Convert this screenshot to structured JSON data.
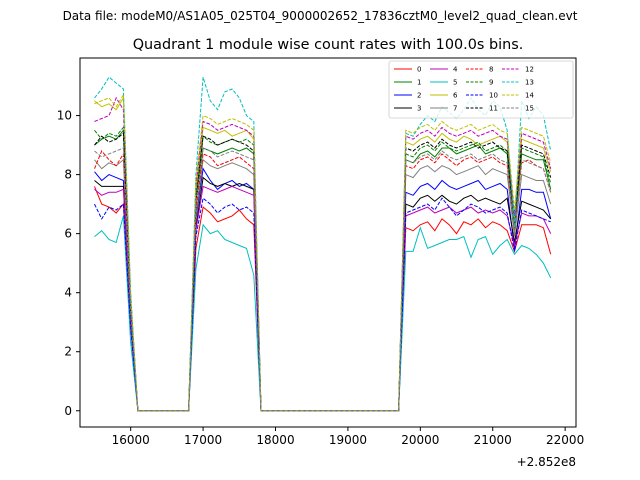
{
  "figure": {
    "suptitle": "Data file: modeM0/AS1A05_025T04_9000002652_17836cztM0_level2_quad_clean.evt",
    "offset_text": "+2.852e8"
  },
  "chart_data": {
    "type": "line",
    "title": "Quadrant 1 module wise count rates with 100.0s bins.",
    "xlabel": "",
    "ylabel": "",
    "x_offset": 285200000,
    "xlim": [
      15300,
      22150
    ],
    "ylim": [
      -0.55,
      11.95
    ],
    "x_ticks": [
      16000,
      17000,
      18000,
      19000,
      20000,
      21000,
      22000
    ],
    "x_tick_labels": [
      "16000",
      "17000",
      "18000",
      "19000",
      "20000",
      "21000",
      "22000"
    ],
    "y_ticks": [
      0,
      2,
      4,
      6,
      8,
      10
    ],
    "y_tick_labels": [
      "0",
      "2",
      "4",
      "6",
      "8",
      "10"
    ],
    "grid": false,
    "legend_position": "top-right",
    "legend_columns": 4,
    "x": [
      15500,
      15600,
      15700,
      15800,
      15900,
      16000,
      16100,
      16800,
      16900,
      17000,
      17100,
      17200,
      17300,
      17400,
      17500,
      17600,
      17700,
      17800,
      19700,
      19800,
      19900,
      20000,
      20100,
      20200,
      20300,
      20400,
      20500,
      20600,
      20700,
      20800,
      20900,
      21000,
      21100,
      21200,
      21300,
      21400,
      21500,
      21600,
      21700,
      21800
    ],
    "series": [
      {
        "name": "0",
        "color": "#ff0000",
        "dash": "solid",
        "values": [
          7.6,
          7.0,
          6.9,
          6.7,
          7.0,
          2.8,
          0,
          0,
          5.5,
          6.9,
          6.7,
          6.4,
          6.5,
          6.6,
          6.8,
          6.5,
          6.3,
          0,
          0,
          6.2,
          6.1,
          6.3,
          6.4,
          6.1,
          6.5,
          6.3,
          6.0,
          6.4,
          6.3,
          6.5,
          6.2,
          6.4,
          6.3,
          6.1,
          5.4,
          6.3,
          6.3,
          6.3,
          6.2,
          5.3
        ]
      },
      {
        "name": "1",
        "color": "#008000",
        "dash": "solid",
        "values": [
          9.0,
          9.2,
          9.3,
          9.2,
          9.5,
          3.5,
          0,
          0,
          7.0,
          8.9,
          8.8,
          8.7,
          8.8,
          8.9,
          8.8,
          8.9,
          8.7,
          0,
          0,
          8.5,
          8.4,
          8.7,
          8.8,
          8.6,
          8.9,
          8.9,
          8.7,
          8.8,
          8.9,
          9.0,
          8.7,
          8.8,
          8.9,
          8.7,
          6.0,
          8.7,
          8.6,
          8.5,
          8.5,
          7.5
        ]
      },
      {
        "name": "2",
        "color": "#0000ff",
        "dash": "solid",
        "values": [
          8.1,
          7.8,
          8.0,
          7.9,
          7.8,
          3.1,
          0,
          0,
          6.5,
          8.2,
          7.8,
          7.5,
          7.7,
          7.8,
          7.6,
          7.7,
          7.5,
          0,
          0,
          7.4,
          7.3,
          7.6,
          7.7,
          7.5,
          7.8,
          7.6,
          7.5,
          7.6,
          7.7,
          7.8,
          7.5,
          7.6,
          7.7,
          7.5,
          5.5,
          7.5,
          7.5,
          7.4,
          7.4,
          6.5
        ]
      },
      {
        "name": "3",
        "color": "#000000",
        "dash": "solid",
        "values": [
          7.8,
          7.6,
          7.6,
          7.6,
          7.6,
          3.0,
          0,
          0,
          6.2,
          7.9,
          7.7,
          7.6,
          7.7,
          7.6,
          7.7,
          7.6,
          7.5,
          0,
          0,
          7.0,
          6.9,
          7.2,
          7.3,
          7.1,
          7.3,
          7.1,
          7.0,
          7.2,
          7.3,
          7.1,
          7.2,
          7.1,
          7.0,
          7.2,
          5.7,
          7.1,
          7.0,
          6.9,
          6.8,
          6.5
        ]
      },
      {
        "name": "4",
        "color": "#bf00bf",
        "dash": "solid",
        "values": [
          7.5,
          7.3,
          7.4,
          7.4,
          7.5,
          2.9,
          0,
          0,
          6.1,
          7.6,
          7.5,
          7.4,
          7.5,
          7.6,
          7.5,
          7.4,
          7.3,
          0,
          0,
          6.6,
          6.7,
          6.8,
          6.9,
          6.7,
          6.8,
          6.9,
          6.7,
          6.8,
          6.9,
          6.7,
          6.8,
          6.7,
          6.8,
          6.6,
          5.6,
          6.7,
          6.6,
          6.6,
          6.5,
          6.0
        ]
      },
      {
        "name": "5",
        "color": "#00bfbf",
        "dash": "solid",
        "values": [
          5.9,
          6.1,
          5.8,
          5.7,
          6.6,
          2.3,
          0,
          0,
          4.8,
          6.3,
          6.0,
          6.1,
          5.8,
          5.7,
          5.6,
          5.5,
          4.6,
          0,
          0,
          5.4,
          5.4,
          6.2,
          5.5,
          5.6,
          5.7,
          5.8,
          5.8,
          5.9,
          5.2,
          5.8,
          5.9,
          5.3,
          5.6,
          5.8,
          5.3,
          5.6,
          5.5,
          5.3,
          5.0,
          4.5
        ]
      },
      {
        "name": "6",
        "color": "#bfbf00",
        "dash": "solid",
        "values": [
          10.5,
          10.3,
          10.4,
          10.2,
          10.6,
          3.8,
          0,
          0,
          7.4,
          9.6,
          9.5,
          9.4,
          9.5,
          9.3,
          9.4,
          9.5,
          9.2,
          0,
          0,
          9.1,
          9.0,
          9.2,
          9.3,
          9.1,
          9.4,
          9.2,
          9.1,
          9.3,
          9.2,
          9.0,
          9.1,
          9.2,
          9.3,
          9.1,
          6.4,
          9.2,
          9.1,
          9.0,
          8.9,
          8.1
        ]
      },
      {
        "name": "7",
        "color": "#808080",
        "dash": "solid",
        "values": [
          8.5,
          8.2,
          8.4,
          8.3,
          8.5,
          3.2,
          0,
          0,
          6.6,
          8.5,
          8.3,
          8.2,
          8.3,
          8.4,
          8.3,
          8.2,
          8.0,
          0,
          0,
          8.0,
          7.9,
          8.2,
          8.3,
          8.1,
          8.3,
          8.2,
          8.0,
          8.1,
          8.2,
          8.3,
          8.0,
          8.2,
          8.1,
          8.0,
          5.9,
          8.0,
          7.9,
          7.8,
          7.8,
          7.0
        ]
      },
      {
        "name": "8",
        "color": "#ff0000",
        "dash": "dashed",
        "values": [
          8.2,
          8.8,
          8.5,
          8.3,
          8.7,
          3.3,
          0,
          0,
          6.8,
          8.7,
          8.6,
          8.3,
          8.4,
          8.5,
          8.6,
          8.4,
          8.2,
          0,
          0,
          8.3,
          8.2,
          8.5,
          8.6,
          8.4,
          8.7,
          8.5,
          8.3,
          8.5,
          8.6,
          8.4,
          8.5,
          8.6,
          8.4,
          8.3,
          6.1,
          8.4,
          8.5,
          8.3,
          8.2,
          7.4
        ]
      },
      {
        "name": "9",
        "color": "#008000",
        "dash": "dashed",
        "values": [
          9.5,
          9.2,
          9.4,
          9.3,
          9.6,
          3.6,
          0,
          0,
          7.2,
          9.3,
          9.1,
          9.0,
          9.1,
          9.2,
          9.1,
          9.2,
          9.0,
          0,
          0,
          8.7,
          8.6,
          8.9,
          9.0,
          8.8,
          9.1,
          8.9,
          8.8,
          8.9,
          9.0,
          9.1,
          8.8,
          8.9,
          9.0,
          8.8,
          6.2,
          8.9,
          8.8,
          8.7,
          8.6,
          7.7
        ]
      },
      {
        "name": "10",
        "color": "#0000ff",
        "dash": "dashed",
        "values": [
          7.0,
          6.5,
          6.9,
          6.8,
          7.0,
          2.8,
          0,
          0,
          5.9,
          7.2,
          7.0,
          6.7,
          6.9,
          7.0,
          6.8,
          6.9,
          6.7,
          0,
          0,
          6.7,
          6.8,
          6.9,
          7.0,
          6.8,
          7.2,
          6.9,
          6.6,
          6.8,
          7.0,
          6.9,
          6.7,
          6.8,
          6.9,
          6.7,
          5.4,
          6.8,
          6.7,
          6.6,
          6.5,
          6.4
        ]
      },
      {
        "name": "11",
        "color": "#000000",
        "dash": "dashed",
        "values": [
          9.0,
          9.3,
          9.1,
          9.2,
          9.4,
          3.5,
          0,
          0,
          7.1,
          9.3,
          9.2,
          9.0,
          9.1,
          9.2,
          9.1,
          9.0,
          8.8,
          0,
          0,
          8.9,
          8.8,
          9.0,
          9.1,
          8.9,
          9.2,
          9.0,
          8.9,
          9.0,
          9.1,
          8.9,
          9.0,
          9.1,
          8.9,
          8.8,
          6.3,
          9.0,
          8.9,
          8.8,
          8.7,
          7.9
        ]
      },
      {
        "name": "12",
        "color": "#bf00bf",
        "dash": "dashed",
        "values": [
          9.8,
          9.9,
          10.0,
          10.6,
          10.2,
          3.8,
          0,
          0,
          7.6,
          9.8,
          9.7,
          9.5,
          9.6,
          9.7,
          9.6,
          9.5,
          9.3,
          0,
          0,
          9.3,
          9.2,
          9.4,
          9.5,
          9.3,
          9.6,
          9.4,
          9.3,
          9.4,
          9.5,
          9.3,
          9.4,
          9.5,
          9.3,
          9.2,
          6.6,
          9.4,
          9.3,
          9.2,
          9.1,
          8.2
        ]
      },
      {
        "name": "13",
        "color": "#00bfbf",
        "dash": "dashed",
        "values": [
          10.6,
          10.9,
          11.3,
          11.1,
          10.9,
          4.0,
          0,
          0,
          8.0,
          11.3,
          10.5,
          10.2,
          10.8,
          10.9,
          10.6,
          10.0,
          9.8,
          0,
          0,
          9.4,
          9.3,
          9.7,
          10.0,
          9.8,
          10.3,
          10.1,
          9.9,
          10.2,
          10.6,
          10.2,
          10.0,
          10.5,
          10.3,
          9.5,
          6.2,
          10.5,
          9.9,
          10.3,
          10.0,
          8.8
        ]
      },
      {
        "name": "14",
        "color": "#bfbf00",
        "dash": "dashed",
        "values": [
          10.4,
          10.5,
          10.6,
          10.3,
          10.7,
          3.9,
          0,
          0,
          7.8,
          10.0,
          9.9,
          9.7,
          9.8,
          9.9,
          9.8,
          9.7,
          9.5,
          0,
          0,
          9.5,
          9.4,
          9.6,
          9.7,
          9.5,
          9.8,
          9.6,
          9.5,
          9.6,
          9.7,
          9.5,
          9.6,
          9.7,
          9.5,
          9.4,
          6.8,
          9.6,
          9.5,
          9.4,
          9.3,
          8.4
        ]
      },
      {
        "name": "15",
        "color": "#808080",
        "dash": "dashed",
        "values": [
          8.8,
          8.6,
          8.7,
          8.8,
          8.9,
          3.4,
          0,
          0,
          7.0,
          8.9,
          8.8,
          8.6,
          8.7,
          8.8,
          8.7,
          8.6,
          8.5,
          0,
          0,
          8.5,
          8.4,
          8.6,
          8.7,
          8.5,
          8.8,
          8.6,
          8.5,
          8.6,
          8.7,
          8.5,
          8.6,
          8.7,
          8.5,
          8.4,
          6.0,
          8.5,
          8.4,
          8.3,
          8.2,
          7.4
        ]
      }
    ]
  }
}
